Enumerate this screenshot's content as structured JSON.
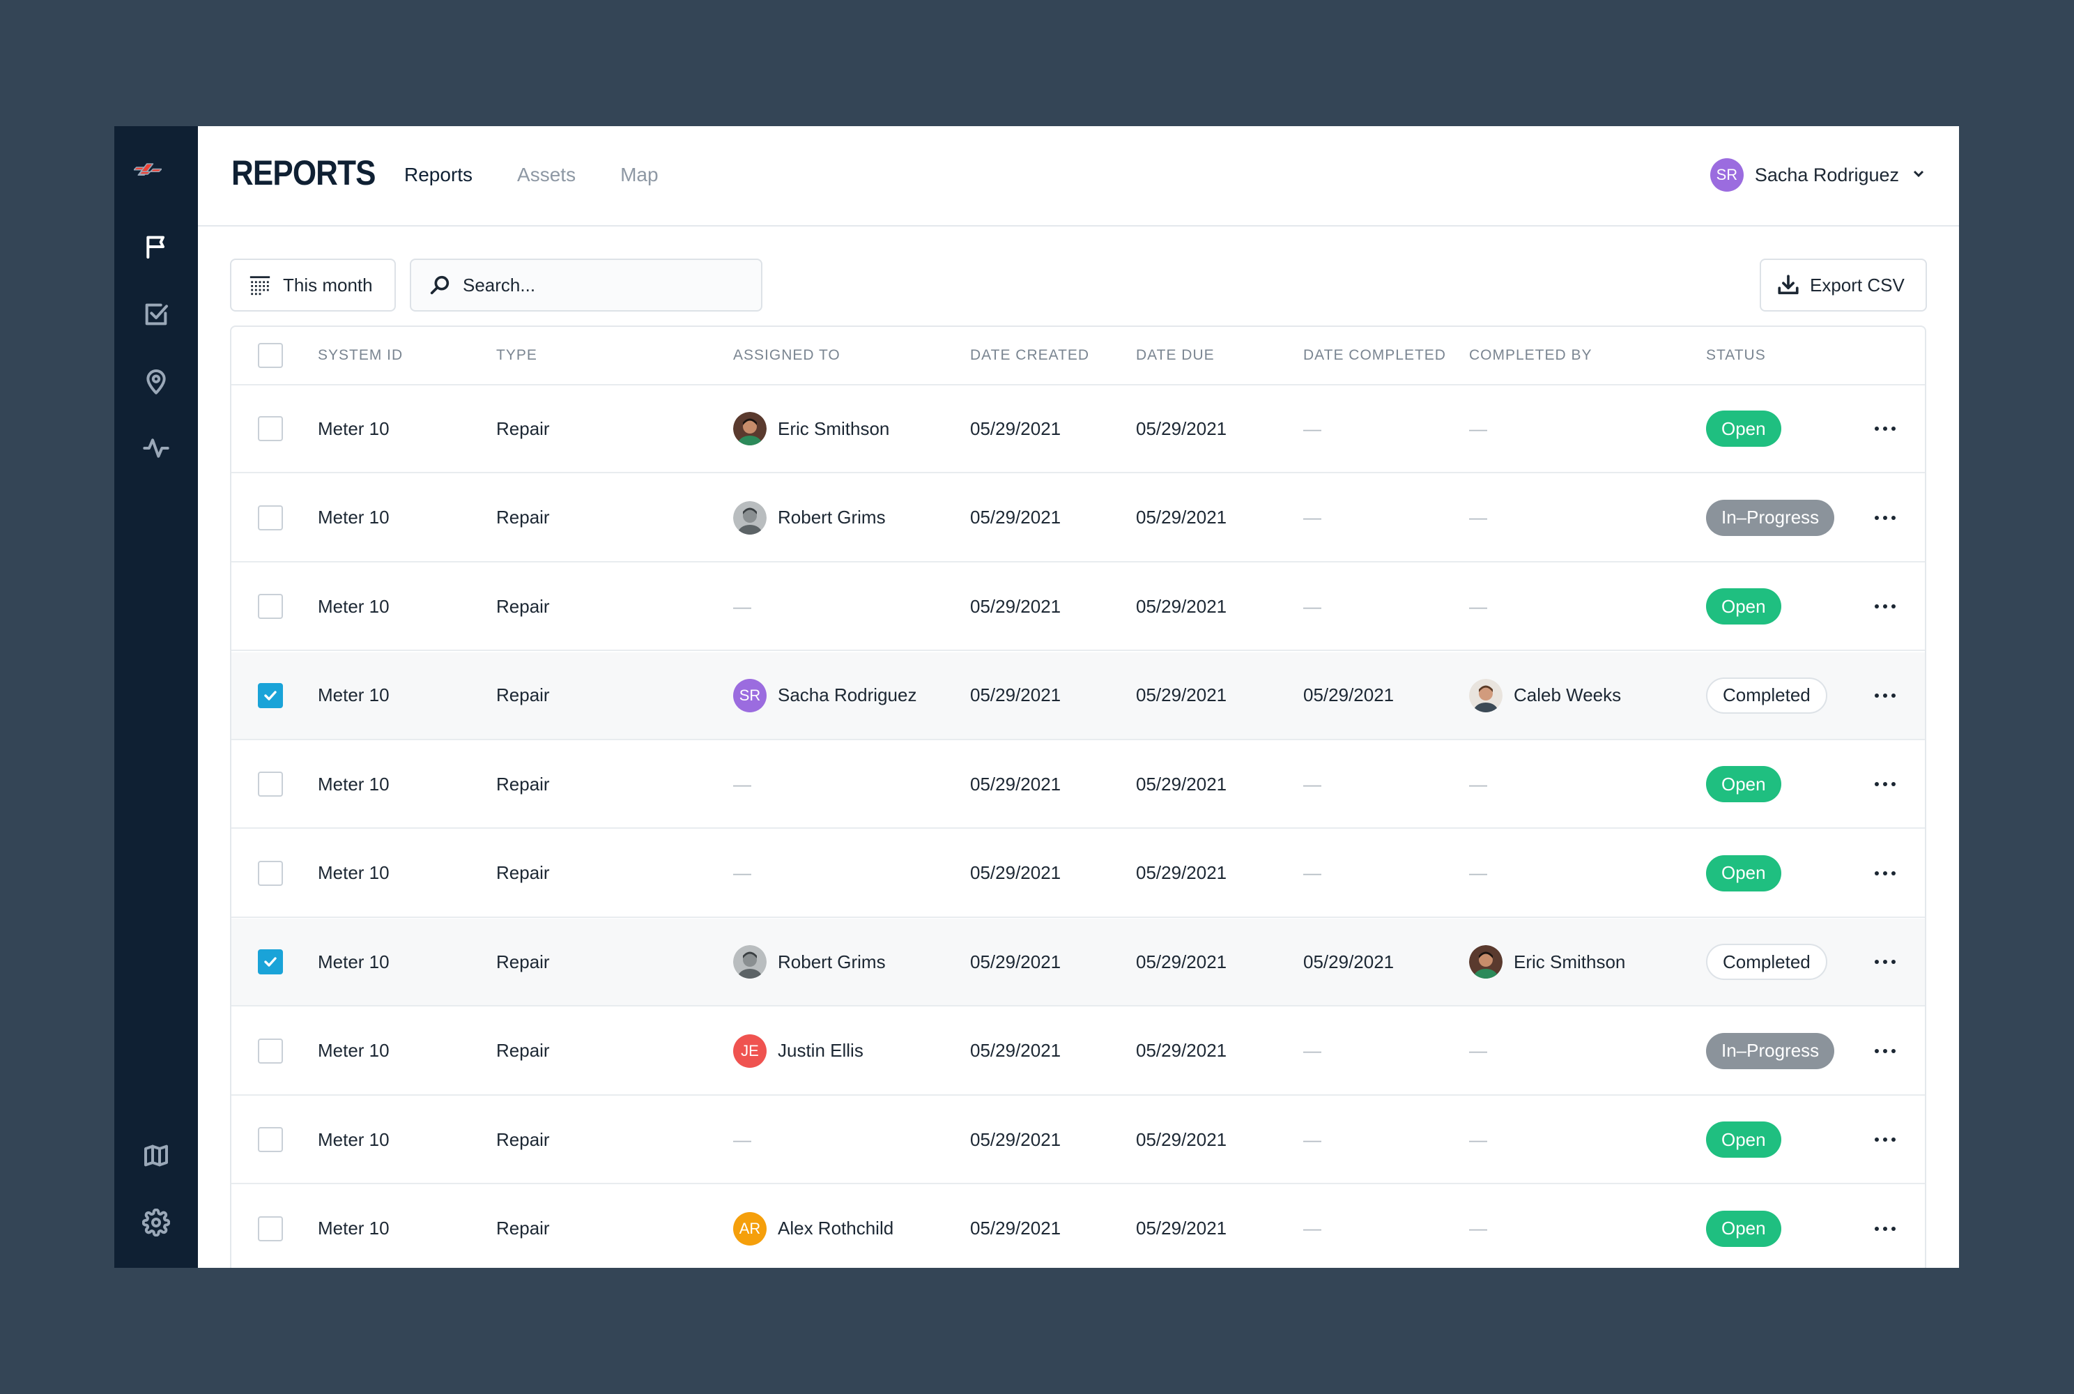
{
  "app": {
    "title": "REPORTS",
    "tabs": [
      {
        "label": "Reports",
        "active": true
      },
      {
        "label": "Assets",
        "active": false
      },
      {
        "label": "Map",
        "active": false
      }
    ],
    "user": {
      "name": "Sacha Rodriguez",
      "initials": "SR",
      "color": "#9b6cdf"
    }
  },
  "sidebar": {
    "items": [
      {
        "icon": "flag-icon",
        "active": true
      },
      {
        "icon": "checkbox-icon",
        "active": false
      },
      {
        "icon": "location-pin-icon",
        "active": false
      },
      {
        "icon": "activity-icon",
        "active": false
      }
    ],
    "bottom_items": [
      {
        "icon": "map-icon"
      },
      {
        "icon": "gear-icon"
      }
    ]
  },
  "toolbar": {
    "date_filter_label": "This month",
    "search_placeholder": "Search...",
    "export_label": "Export CSV"
  },
  "table": {
    "columns": [
      "SYSTEM ID",
      "TYPE",
      "ASSIGNED TO",
      "DATE CREATED",
      "DATE DUE",
      "DATE COMPLETED",
      "COMPLETED BY",
      "STATUS"
    ],
    "rows": [
      {
        "checked": false,
        "system_id": "Meter 10",
        "type": "Repair",
        "assigned_to": "Eric Smithson",
        "assigned_avatar": "photo-eric",
        "date_created": "05/29/2021",
        "date_due": "05/29/2021",
        "date_completed": "—",
        "completed_by": "—",
        "status": "Open"
      },
      {
        "checked": false,
        "system_id": "Meter 10",
        "type": "Repair",
        "assigned_to": "Robert Grims",
        "assigned_avatar": "photo-robert",
        "date_created": "05/29/2021",
        "date_due": "05/29/2021",
        "date_completed": "—",
        "completed_by": "—",
        "status": "In–Progress"
      },
      {
        "checked": false,
        "system_id": "Meter 10",
        "type": "Repair",
        "assigned_to": "—",
        "assigned_avatar": "",
        "date_created": "05/29/2021",
        "date_due": "05/29/2021",
        "date_completed": "—",
        "completed_by": "—",
        "status": "Open"
      },
      {
        "checked": true,
        "system_id": "Meter 10",
        "type": "Repair",
        "assigned_to": "Sacha Rodriguez",
        "assigned_avatar": "initials",
        "assigned_initials": "SR",
        "assigned_color": "#9b6cdf",
        "date_created": "05/29/2021",
        "date_due": "05/29/2021",
        "date_completed": "05/29/2021",
        "completed_by": "Caleb Weeks",
        "completed_avatar": "photo-caleb",
        "status": "Completed"
      },
      {
        "checked": false,
        "system_id": "Meter 10",
        "type": "Repair",
        "assigned_to": "—",
        "assigned_avatar": "",
        "date_created": "05/29/2021",
        "date_due": "05/29/2021",
        "date_completed": "—",
        "completed_by": "—",
        "status": "Open"
      },
      {
        "checked": false,
        "system_id": "Meter 10",
        "type": "Repair",
        "assigned_to": "—",
        "assigned_avatar": "",
        "date_created": "05/29/2021",
        "date_due": "05/29/2021",
        "date_completed": "—",
        "completed_by": "—",
        "status": "Open"
      },
      {
        "checked": true,
        "system_id": "Meter 10",
        "type": "Repair",
        "assigned_to": "Robert Grims",
        "assigned_avatar": "photo-robert",
        "date_created": "05/29/2021",
        "date_due": "05/29/2021",
        "date_completed": "05/29/2021",
        "completed_by": "Eric Smithson",
        "completed_avatar": "photo-eric",
        "status": "Completed"
      },
      {
        "checked": false,
        "system_id": "Meter 10",
        "type": "Repair",
        "assigned_to": "Justin Ellis",
        "assigned_avatar": "initials",
        "assigned_initials": "JE",
        "assigned_color": "#ef5350",
        "date_created": "05/29/2021",
        "date_due": "05/29/2021",
        "date_completed": "—",
        "completed_by": "—",
        "status": "In–Progress"
      },
      {
        "checked": false,
        "system_id": "Meter 10",
        "type": "Repair",
        "assigned_to": "—",
        "assigned_avatar": "",
        "date_created": "05/29/2021",
        "date_due": "05/29/2021",
        "date_completed": "—",
        "completed_by": "—",
        "status": "Open"
      },
      {
        "checked": false,
        "system_id": "Meter 10",
        "type": "Repair",
        "assigned_to": "Alex Rothchild",
        "assigned_avatar": "initials",
        "assigned_initials": "AR",
        "assigned_color": "#f59f0b",
        "date_created": "05/29/2021",
        "date_due": "05/29/2021",
        "date_completed": "—",
        "completed_by": "—",
        "status": "Open"
      }
    ]
  },
  "colors": {
    "background": "#344556",
    "sidebar": "#0f2033",
    "open": "#1fbf80",
    "in_progress": "#8b939b",
    "checkbox_checked": "#1aa3d8",
    "logo": "#ef4135"
  }
}
